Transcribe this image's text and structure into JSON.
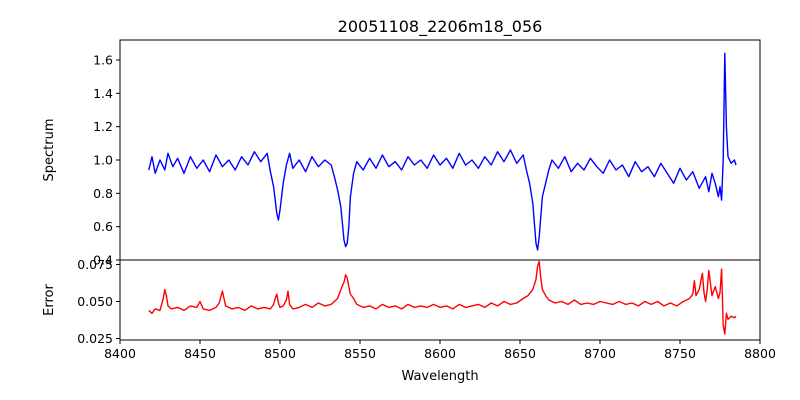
{
  "chart_data": [
    {
      "type": "line",
      "title": "20051108_2206m18_056",
      "xlabel": "",
      "ylabel": "Spectrum",
      "xlim": [
        8400,
        8800
      ],
      "ylim": [
        0.4,
        1.72
      ],
      "yticks": [
        "0.4",
        "0.6",
        "0.8",
        "1.0",
        "1.2",
        "1.4",
        "1.6"
      ],
      "grid": false,
      "colors": {
        "line": "#0000ff"
      },
      "series": [
        {
          "x": [
            8418,
            8420,
            8422,
            8425,
            8428,
            8430,
            8433,
            8436,
            8440,
            8444,
            8448,
            8452,
            8456,
            8460,
            8464,
            8468,
            8472,
            8476,
            8480,
            8484,
            8488,
            8492,
            8494,
            8496,
            8497,
            8498,
            8499,
            8500,
            8502,
            8504,
            8506,
            8508,
            8512,
            8516,
            8520,
            8524,
            8528,
            8532,
            8534,
            8536,
            8538,
            8539,
            8540,
            8541,
            8542,
            8543,
            8544,
            8546,
            8548,
            8552,
            8556,
            8560,
            8564,
            8568,
            8572,
            8576,
            8580,
            8584,
            8588,
            8592,
            8596,
            8600,
            8604,
            8608,
            8612,
            8616,
            8620,
            8624,
            8628,
            8632,
            8636,
            8640,
            8644,
            8648,
            8652,
            8654,
            8656,
            8658,
            8659,
            8660,
            8661,
            8662,
            8663,
            8664,
            8666,
            8668,
            8670,
            8674,
            8678,
            8682,
            8686,
            8690,
            8694,
            8698,
            8702,
            8706,
            8710,
            8714,
            8718,
            8722,
            8726,
            8730,
            8734,
            8738,
            8742,
            8746,
            8750,
            8754,
            8758,
            8762,
            8766,
            8768,
            8770,
            8772,
            8774,
            8775,
            8776,
            8777,
            8778,
            8779,
            8780,
            8782,
            8784,
            8785
          ],
          "y": [
            0.94,
            1.02,
            0.92,
            1.0,
            0.94,
            1.04,
            0.96,
            1.01,
            0.92,
            1.02,
            0.95,
            1.0,
            0.93,
            1.03,
            0.96,
            1.0,
            0.94,
            1.02,
            0.97,
            1.05,
            0.99,
            1.04,
            0.93,
            0.84,
            0.76,
            0.68,
            0.64,
            0.7,
            0.86,
            0.97,
            1.04,
            0.95,
            1.0,
            0.93,
            1.02,
            0.96,
            1.0,
            0.97,
            0.9,
            0.82,
            0.72,
            0.62,
            0.52,
            0.48,
            0.5,
            0.6,
            0.78,
            0.92,
            0.99,
            0.94,
            1.01,
            0.95,
            1.03,
            0.96,
            0.99,
            0.94,
            1.02,
            0.97,
            1.0,
            0.95,
            1.03,
            0.97,
            1.01,
            0.95,
            1.04,
            0.97,
            1.0,
            0.95,
            1.02,
            0.97,
            1.05,
            0.99,
            1.06,
            0.98,
            1.03,
            0.94,
            0.86,
            0.74,
            0.62,
            0.5,
            0.46,
            0.54,
            0.66,
            0.78,
            0.86,
            0.94,
            1.0,
            0.95,
            1.02,
            0.93,
            0.98,
            0.94,
            1.01,
            0.96,
            0.92,
            1.0,
            0.94,
            0.97,
            0.9,
            0.99,
            0.93,
            0.96,
            0.9,
            0.98,
            0.92,
            0.86,
            0.95,
            0.88,
            0.93,
            0.83,
            0.9,
            0.81,
            0.92,
            0.86,
            0.78,
            0.84,
            0.76,
            1.0,
            1.64,
            1.2,
            1.02,
            0.98,
            1.0,
            0.97
          ]
        }
      ]
    },
    {
      "type": "line",
      "title": "",
      "xlabel": "Wavelength",
      "ylabel": "Error",
      "xlim": [
        8400,
        8800
      ],
      "ylim": [
        0.024,
        0.078
      ],
      "xticks": [
        "8400",
        "8450",
        "8500",
        "8550",
        "8600",
        "8650",
        "8700",
        "8750",
        "8800"
      ],
      "yticks": [
        "0.025",
        "0.050",
        "0.075"
      ],
      "grid": false,
      "colors": {
        "line": "#ff0000"
      },
      "series": [
        {
          "x": [
            8418,
            8420,
            8422,
            8425,
            8427,
            8428,
            8429,
            8430,
            8432,
            8436,
            8440,
            8444,
            8448,
            8450,
            8452,
            8456,
            8460,
            8462,
            8464,
            8466,
            8470,
            8474,
            8478,
            8482,
            8486,
            8490,
            8494,
            8496,
            8497,
            8498,
            8499,
            8500,
            8502,
            8504,
            8505,
            8506,
            8508,
            8512,
            8516,
            8520,
            8524,
            8528,
            8532,
            8536,
            8538,
            8540,
            8541,
            8542,
            8543,
            8544,
            8546,
            8548,
            8552,
            8556,
            8560,
            8564,
            8568,
            8572,
            8576,
            8580,
            8584,
            8588,
            8592,
            8596,
            8600,
            8604,
            8608,
            8612,
            8616,
            8620,
            8624,
            8628,
            8632,
            8636,
            8640,
            8644,
            8648,
            8652,
            8655,
            8658,
            8660,
            8661,
            8662,
            8663,
            8664,
            8666,
            8668,
            8672,
            8676,
            8680,
            8684,
            8688,
            8692,
            8696,
            8700,
            8704,
            8708,
            8712,
            8716,
            8720,
            8724,
            8728,
            8732,
            8736,
            8740,
            8744,
            8748,
            8752,
            8756,
            8758,
            8759,
            8760,
            8762,
            8764,
            8765,
            8766,
            8767,
            8768,
            8770,
            8772,
            8774,
            8775,
            8776,
            8777,
            8778,
            8779,
            8780,
            8782,
            8784,
            8785
          ],
          "y": [
            0.044,
            0.042,
            0.045,
            0.044,
            0.052,
            0.058,
            0.054,
            0.047,
            0.045,
            0.046,
            0.044,
            0.047,
            0.046,
            0.05,
            0.045,
            0.044,
            0.046,
            0.049,
            0.057,
            0.047,
            0.045,
            0.046,
            0.044,
            0.047,
            0.045,
            0.046,
            0.045,
            0.048,
            0.052,
            0.055,
            0.049,
            0.046,
            0.047,
            0.051,
            0.057,
            0.048,
            0.045,
            0.046,
            0.048,
            0.046,
            0.049,
            0.047,
            0.048,
            0.052,
            0.058,
            0.063,
            0.068,
            0.066,
            0.06,
            0.055,
            0.052,
            0.048,
            0.046,
            0.047,
            0.045,
            0.048,
            0.046,
            0.047,
            0.045,
            0.048,
            0.046,
            0.047,
            0.046,
            0.048,
            0.046,
            0.047,
            0.045,
            0.048,
            0.046,
            0.047,
            0.048,
            0.046,
            0.049,
            0.047,
            0.05,
            0.048,
            0.049,
            0.052,
            0.054,
            0.058,
            0.065,
            0.074,
            0.077,
            0.066,
            0.058,
            0.054,
            0.051,
            0.049,
            0.05,
            0.048,
            0.051,
            0.048,
            0.049,
            0.048,
            0.05,
            0.049,
            0.048,
            0.05,
            0.048,
            0.049,
            0.047,
            0.05,
            0.048,
            0.05,
            0.047,
            0.049,
            0.047,
            0.05,
            0.052,
            0.055,
            0.064,
            0.054,
            0.058,
            0.069,
            0.056,
            0.05,
            0.058,
            0.071,
            0.054,
            0.06,
            0.052,
            0.056,
            0.072,
            0.034,
            0.028,
            0.042,
            0.038,
            0.04,
            0.039,
            0.04
          ]
        }
      ]
    }
  ]
}
